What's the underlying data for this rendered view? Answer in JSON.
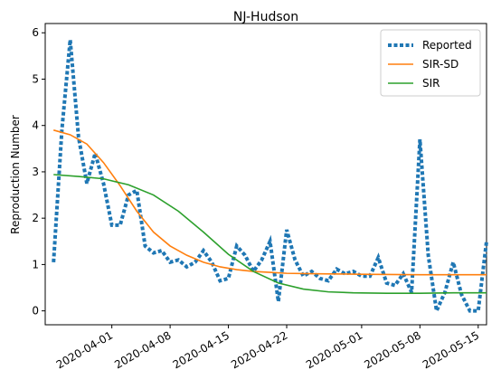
{
  "chart_data": {
    "type": "line",
    "title": "NJ-Hudson",
    "xlabel": "",
    "ylabel": "Reproduction Number",
    "xlim": [
      "2020-03-24",
      "2020-05-16"
    ],
    "ylim": [
      -0.3,
      6.2
    ],
    "xticks": [
      "2020-04-01",
      "2020-04-08",
      "2020-04-15",
      "2020-04-22",
      "2020-05-01",
      "2020-05-08",
      "2020-05-15"
    ],
    "yticks": [
      0,
      1,
      2,
      3,
      4,
      5,
      6
    ],
    "grid": false,
    "legend_position": "top-right",
    "series": [
      {
        "name": "Reported",
        "style": "dotted",
        "color": "#1f77b4",
        "points": [
          [
            "2020-03-25",
            1.05
          ],
          [
            "2020-03-26",
            3.9
          ],
          [
            "2020-03-27",
            5.85
          ],
          [
            "2020-03-28",
            3.75
          ],
          [
            "2020-03-29",
            2.75
          ],
          [
            "2020-03-30",
            3.4
          ],
          [
            "2020-03-31",
            2.75
          ],
          [
            "2020-04-01",
            1.85
          ],
          [
            "2020-04-02",
            1.85
          ],
          [
            "2020-04-03",
            2.5
          ],
          [
            "2020-04-04",
            2.6
          ],
          [
            "2020-04-05",
            1.4
          ],
          [
            "2020-04-06",
            1.25
          ],
          [
            "2020-04-07",
            1.3
          ],
          [
            "2020-04-08",
            1.05
          ],
          [
            "2020-04-09",
            1.1
          ],
          [
            "2020-04-10",
            0.95
          ],
          [
            "2020-04-11",
            1.05
          ],
          [
            "2020-04-12",
            1.3
          ],
          [
            "2020-04-13",
            1.05
          ],
          [
            "2020-04-14",
            0.65
          ],
          [
            "2020-04-15",
            0.7
          ],
          [
            "2020-04-16",
            1.4
          ],
          [
            "2020-04-17",
            1.2
          ],
          [
            "2020-04-18",
            0.85
          ],
          [
            "2020-04-19",
            1.1
          ],
          [
            "2020-04-20",
            1.5
          ],
          [
            "2020-04-21",
            0.2
          ],
          [
            "2020-04-22",
            1.75
          ],
          [
            "2020-04-23",
            1.1
          ],
          [
            "2020-04-24",
            0.75
          ],
          [
            "2020-04-25",
            0.85
          ],
          [
            "2020-04-26",
            0.7
          ],
          [
            "2020-04-27",
            0.65
          ],
          [
            "2020-04-28",
            0.9
          ],
          [
            "2020-04-29",
            0.8
          ],
          [
            "2020-04-30",
            0.85
          ],
          [
            "2020-05-01",
            0.75
          ],
          [
            "2020-05-02",
            0.75
          ],
          [
            "2020-05-03",
            1.15
          ],
          [
            "2020-05-04",
            0.6
          ],
          [
            "2020-05-05",
            0.55
          ],
          [
            "2020-05-06",
            0.8
          ],
          [
            "2020-05-07",
            0.4
          ],
          [
            "2020-05-08",
            3.7
          ],
          [
            "2020-05-09",
            1.2
          ],
          [
            "2020-05-10",
            0.0
          ],
          [
            "2020-05-11",
            0.4
          ],
          [
            "2020-05-12",
            1.05
          ],
          [
            "2020-05-13",
            0.35
          ],
          [
            "2020-05-14",
            0.0
          ],
          [
            "2020-05-15",
            0.0
          ],
          [
            "2020-05-16",
            1.5
          ]
        ]
      },
      {
        "name": "SIR-SD",
        "style": "solid",
        "color": "#ff7f0e",
        "points": [
          [
            "2020-03-25",
            3.9
          ],
          [
            "2020-03-27",
            3.8
          ],
          [
            "2020-03-29",
            3.6
          ],
          [
            "2020-03-31",
            3.2
          ],
          [
            "2020-04-02",
            2.7
          ],
          [
            "2020-04-04",
            2.15
          ],
          [
            "2020-04-06",
            1.7
          ],
          [
            "2020-04-08",
            1.4
          ],
          [
            "2020-04-10",
            1.2
          ],
          [
            "2020-04-12",
            1.05
          ],
          [
            "2020-04-14",
            0.95
          ],
          [
            "2020-04-16",
            0.89
          ],
          [
            "2020-04-18",
            0.85
          ],
          [
            "2020-04-20",
            0.83
          ],
          [
            "2020-04-22",
            0.81
          ],
          [
            "2020-04-26",
            0.8
          ],
          [
            "2020-05-01",
            0.79
          ],
          [
            "2020-05-08",
            0.78
          ],
          [
            "2020-05-16",
            0.78
          ]
        ]
      },
      {
        "name": "SIR",
        "style": "solid",
        "color": "#2ca02c",
        "points": [
          [
            "2020-03-25",
            2.94
          ],
          [
            "2020-03-28",
            2.9
          ],
          [
            "2020-03-31",
            2.85
          ],
          [
            "2020-04-03",
            2.72
          ],
          [
            "2020-04-06",
            2.5
          ],
          [
            "2020-04-09",
            2.15
          ],
          [
            "2020-04-12",
            1.7
          ],
          [
            "2020-04-15",
            1.22
          ],
          [
            "2020-04-18",
            0.85
          ],
          [
            "2020-04-21",
            0.6
          ],
          [
            "2020-04-24",
            0.47
          ],
          [
            "2020-04-27",
            0.41
          ],
          [
            "2020-04-30",
            0.39
          ],
          [
            "2020-05-04",
            0.38
          ],
          [
            "2020-05-08",
            0.38
          ],
          [
            "2020-05-12",
            0.39
          ],
          [
            "2020-05-16",
            0.39
          ]
        ]
      }
    ]
  }
}
